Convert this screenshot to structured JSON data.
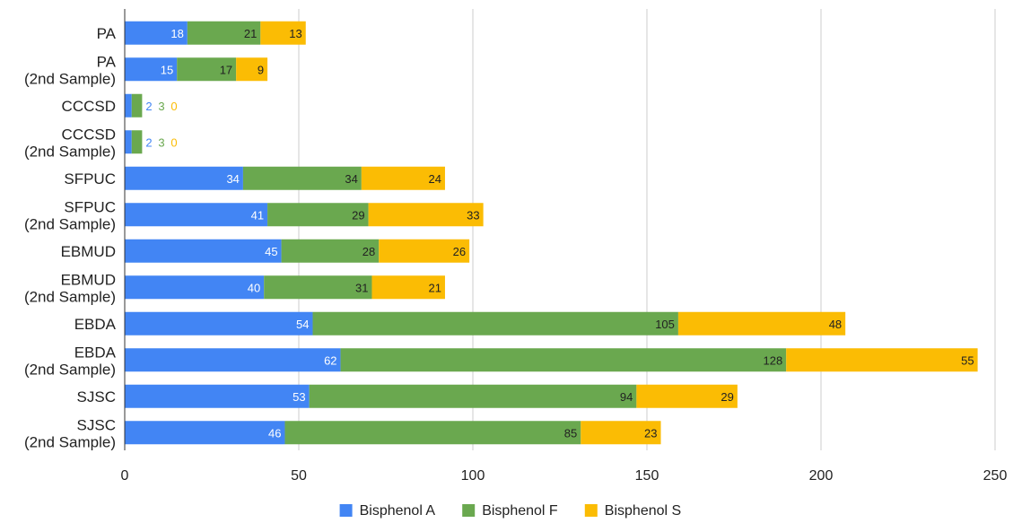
{
  "chart_data": {
    "type": "bar",
    "orientation": "horizontal",
    "stacked": true,
    "categories": [
      [
        "PA"
      ],
      [
        "PA",
        "(2nd Sample)"
      ],
      [
        "CCCSD"
      ],
      [
        "CCCSD",
        "(2nd Sample)"
      ],
      [
        "SFPUC"
      ],
      [
        "SFPUC",
        "(2nd Sample)"
      ],
      [
        "EBMUD"
      ],
      [
        "EBMUD",
        "(2nd Sample)"
      ],
      [
        "EBDA"
      ],
      [
        "EBDA",
        "(2nd Sample)"
      ],
      [
        "SJSC"
      ],
      [
        "SJSC",
        "(2nd Sample)"
      ]
    ],
    "series": [
      {
        "name": "Bisphenol A",
        "color": "#4285F4",
        "values": [
          18,
          15,
          2,
          2,
          34,
          41,
          45,
          40,
          54,
          62,
          53,
          46
        ]
      },
      {
        "name": "Bisphenol F",
        "color": "#6AA84F",
        "values": [
          21,
          17,
          3,
          3,
          34,
          29,
          28,
          31,
          105,
          128,
          94,
          85
        ]
      },
      {
        "name": "Bisphenol S",
        "color": "#FBBC04",
        "values": [
          13,
          9,
          0,
          0,
          24,
          33,
          26,
          21,
          48,
          55,
          29,
          23
        ]
      }
    ],
    "xlim": [
      0,
      250
    ],
    "xticks": [
      0,
      50,
      100,
      150,
      200,
      250
    ],
    "grid": true,
    "legend": "bottom",
    "title": "",
    "xlabel": "",
    "ylabel": ""
  }
}
